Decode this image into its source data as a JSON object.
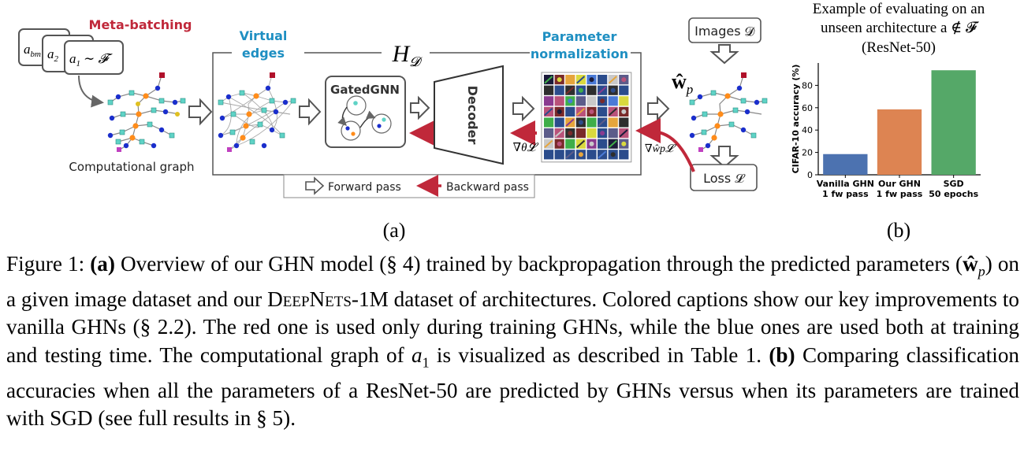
{
  "panel_a": {
    "meta_batching": "Meta-batching",
    "arch_a_bm": "a",
    "arch_a_bm_sub": "bm",
    "arch_a2": "a",
    "arch_a2_sub": "2",
    "arch_a1": "a",
    "arch_a1_sub": "1",
    "arch_a1_rest": "∼ 𝓕",
    "computational_graph": "Computational graph",
    "virtual_edges_1": "Virtual",
    "virtual_edges_2": "edges",
    "hd": "H",
    "hd_sub": "𝓓",
    "gated_gnn": "GatedGNN",
    "decoder": "Decoder",
    "param_norm_1": "Parameter",
    "param_norm_2": "normalization",
    "grad_theta": "∇θ𝓛",
    "images": "Images 𝓓",
    "w_hat": "ŵ",
    "w_hat_sub": "p",
    "grad_w": "∇ŵp𝓛",
    "loss": "Loss 𝓛",
    "legend_forward": "Forward pass",
    "legend_backward": "Backward pass",
    "label": "(a)"
  },
  "panel_b": {
    "title_1": "Example of evaluating on an",
    "title_2": "unseen architecture a ∉ 𝓕",
    "title_3": "(ResNet-50)",
    "label": "(b)"
  },
  "chart_data": {
    "type": "bar",
    "categories": [
      "Vanilla GHN 1 fw pass",
      "Our GHN 1 fw pass",
      "SGD 50 epochs"
    ],
    "category_lines": [
      [
        "Vanilla GHN",
        "1 fw pass"
      ],
      [
        "Our GHN",
        "1 fw pass"
      ],
      [
        "SGD",
        "50 epochs"
      ]
    ],
    "values": [
      18.5,
      58.5,
      93.5
    ],
    "colors": [
      "#4c72b0",
      "#dd8452",
      "#55a868"
    ],
    "ylabel": "CIFAR-10 accuracy (%)",
    "ylim": [
      0,
      100
    ],
    "yticks": [
      0,
      20,
      40,
      60,
      80
    ],
    "grid": false
  },
  "caption": {
    "fig_label": "Figure 1:",
    "a_label": "(a)",
    "a_text_1": "Overview of our GHN model (§ 4) trained by backpropagation through the predicted parameters (",
    "a_w": "ŵ",
    "a_w_sub": "p",
    "a_text_2": ") on a given image dataset and our",
    "dataset_name": "DeepNets-1M",
    "a_text_3": "dataset of architectures. Colored captions show our key improvements to vanilla GHNs (§ 2.2). The red one is used only during training GHNs, while the blue ones are used both at training and testing time. The computational graph of",
    "a1": "a",
    "a1_sub": "1",
    "a_text_4": "is visualized as described in Table 1.",
    "b_label": "(b)",
    "b_text": "Comparing classification accuracies when all the parameters of a ResNet-50 are predicted by GHNs versus when its parameters are trained with SGD (see full results in § 5)."
  }
}
